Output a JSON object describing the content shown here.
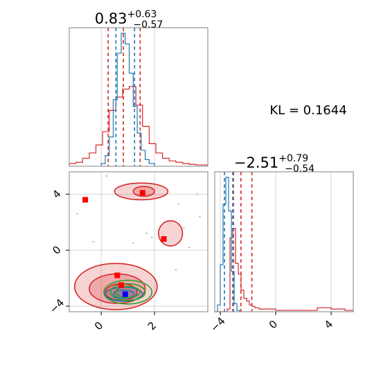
{
  "kl_text": "KL = 0.1644",
  "colors": {
    "red": "#d62728",
    "blue": "#1f77b4",
    "green": "#2ca02c",
    "marker_blue": "#0000ff",
    "marker_red": "#ff0000",
    "frame": "#808080",
    "grid": "#d3d3d3"
  },
  "chart_data": [
    {
      "type": "histogram",
      "panel": "top-left",
      "title": {
        "main": "0.83",
        "sup": "+0.63",
        "sub": "−0.57"
      },
      "xlim": [
        -1.2,
        4.0
      ],
      "x_ticks": [
        0,
        2
      ],
      "grid": true,
      "series": [
        {
          "color": "red",
          "bin_edges": [
            -1.2,
            -0.95,
            -0.7,
            -0.45,
            -0.2,
            0.05,
            0.3,
            0.55,
            0.8,
            1.05,
            1.3,
            1.55,
            1.8,
            2.05,
            2.3,
            2.55,
            2.8,
            3.05,
            3.3,
            3.55,
            3.8,
            4.0
          ],
          "heights": [
            0.02,
            0.03,
            0.06,
            0.1,
            0.16,
            0.26,
            0.42,
            0.52,
            0.58,
            0.6,
            0.46,
            0.3,
            0.17,
            0.1,
            0.06,
            0.04,
            0.03,
            0.02,
            0.015,
            0.01,
            0.01
          ],
          "quantile_lines": [
            0.26,
            0.83,
            1.46
          ]
        },
        {
          "color": "blue",
          "bin_edges": [
            0.0,
            0.15,
            0.3,
            0.45,
            0.6,
            0.75,
            0.9,
            1.05,
            1.2,
            1.35,
            1.5,
            1.65,
            1.8,
            2.0
          ],
          "heights": [
            0.02,
            0.08,
            0.22,
            0.5,
            0.85,
            1.0,
            0.92,
            0.7,
            0.45,
            0.25,
            0.12,
            0.05,
            0.02
          ],
          "quantile_lines": [
            0.55,
            1.25
          ]
        }
      ]
    },
    {
      "type": "histogram",
      "panel": "bottom-right",
      "title": {
        "main": "−2.51",
        "sup": "+0.79",
        "sub": "−0.54"
      },
      "xlim": [
        -4.4,
        5.6
      ],
      "x_ticks": [
        -4,
        0,
        4
      ],
      "grid": true,
      "series": [
        {
          "color": "red",
          "bin_edges": [
            -4.4,
            -3.9,
            -3.5,
            -3.3,
            -3.1,
            -2.9,
            -2.7,
            -2.5,
            -2.3,
            -2.1,
            -1.9,
            -1.7,
            -1.5,
            -1.2,
            0.0,
            3.0,
            4.0,
            5.0,
            5.6
          ],
          "heights": [
            0.0,
            0.0,
            0.02,
            0.55,
            0.62,
            0.36,
            0.28,
            0.16,
            0.1,
            0.08,
            0.05,
            0.04,
            0.03,
            0.02,
            0.01,
            0.03,
            0.02,
            0.01
          ],
          "quantile_lines": [
            -3.05,
            -2.51,
            -1.72
          ]
        },
        {
          "color": "blue",
          "bin_edges": [
            -4.2,
            -4.0,
            -3.8,
            -3.6,
            -3.4,
            -3.2,
            -3.0,
            -2.8,
            -2.6
          ],
          "heights": [
            0.05,
            0.35,
            0.8,
            1.0,
            0.75,
            0.3,
            0.06,
            0.01
          ],
          "quantile_lines": [
            -3.7,
            -3.1
          ]
        }
      ]
    },
    {
      "type": "scatter",
      "panel": "bottom-left",
      "xlim": [
        -1.2,
        4.0
      ],
      "ylim": [
        -4.4,
        5.6
      ],
      "x_ticks": [
        0,
        2
      ],
      "y_ticks": [
        -4,
        0,
        4
      ],
      "grid": true,
      "contours": [
        {
          "color": "red",
          "fill_opacity": 0.2,
          "center": [
            0.55,
            -2.6
          ],
          "radii": [
            1.55,
            1.65
          ]
        },
        {
          "color": "red",
          "fill_opacity": 0.25,
          "center": [
            0.6,
            -2.75
          ],
          "radii": [
            1.05,
            1.05
          ]
        },
        {
          "color": "red",
          "fill_opacity": 0.3,
          "center": [
            0.75,
            -3.0
          ],
          "radii": [
            0.6,
            0.6
          ]
        },
        {
          "color": "red",
          "fill_opacity": 0.2,
          "center": [
            1.5,
            4.2
          ],
          "radii": [
            1.0,
            0.6
          ]
        },
        {
          "color": "red",
          "fill_opacity": 0.25,
          "center": [
            1.6,
            4.2
          ],
          "radii": [
            0.4,
            0.35
          ]
        },
        {
          "color": "red",
          "fill_opacity": 0.2,
          "center": [
            2.6,
            1.2
          ],
          "radii": [
            0.45,
            0.9
          ]
        },
        {
          "color": "blue",
          "fill_opacity": 0.15,
          "center": [
            0.85,
            -3.15
          ],
          "radii": [
            0.7,
            0.5
          ]
        },
        {
          "color": "blue",
          "fill_opacity": 0.25,
          "center": [
            0.85,
            -3.15
          ],
          "radii": [
            0.4,
            0.3
          ]
        },
        {
          "color": "green",
          "fill_opacity": 0.0,
          "center": [
            1.0,
            -3.0
          ],
          "radii": [
            0.9,
            0.85
          ]
        },
        {
          "color": "green",
          "fill_opacity": 0.0,
          "center": [
            1.0,
            -3.0
          ],
          "radii": [
            0.65,
            0.6
          ]
        },
        {
          "color": "green",
          "fill_opacity": 0.0,
          "center": [
            1.0,
            -3.0
          ],
          "radii": [
            0.45,
            0.4
          ]
        }
      ],
      "markers": [
        {
          "color": "marker_red",
          "x": -0.6,
          "y": 3.6
        },
        {
          "color": "marker_red",
          "x": 1.55,
          "y": 4.1
        },
        {
          "color": "marker_red",
          "x": 2.35,
          "y": 0.8
        },
        {
          "color": "marker_red",
          "x": 0.6,
          "y": -1.8
        },
        {
          "color": "marker_red",
          "x": 0.75,
          "y": -2.5
        },
        {
          "color": "marker_blue",
          "x": 0.9,
          "y": -3.15
        }
      ],
      "scatter_points": [
        {
          "x": -0.9,
          "y": 2.6
        },
        {
          "x": 3.6,
          "y": 4.0
        },
        {
          "x": 2.9,
          "y": 3.3
        },
        {
          "x": 1.2,
          "y": 0.5
        },
        {
          "x": 1.7,
          "y": 1.2
        },
        {
          "x": 2.8,
          "y": -1.4
        },
        {
          "x": 3.3,
          "y": 0.2
        },
        {
          "x": -0.3,
          "y": 0.6
        },
        {
          "x": 3.1,
          "y": 1.6
        },
        {
          "x": 1.9,
          "y": 0.9
        },
        {
          "x": 0.2,
          "y": 5.3
        },
        {
          "x": 3.7,
          "y": 2.4
        }
      ]
    }
  ]
}
